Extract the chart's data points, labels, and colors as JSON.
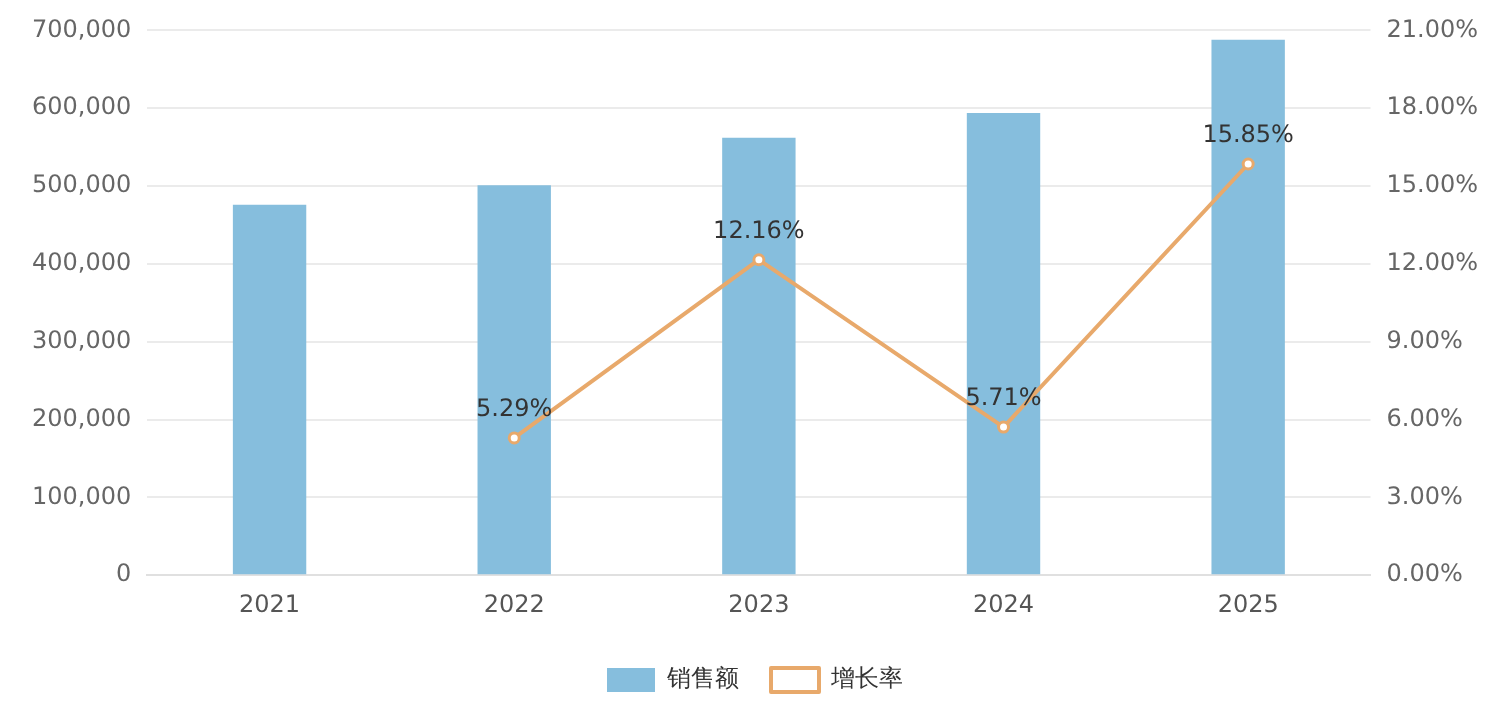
{
  "chart_data": {
    "type": "bar",
    "categories": [
      "2021",
      "2022",
      "2023",
      "2024",
      "2025"
    ],
    "series": [
      {
        "name": "销售额",
        "color": "#86bedd",
        "values": [
          476000,
          501000,
          562000,
          594000,
          688000
        ]
      },
      {
        "name": "增长率",
        "type": "line",
        "axis": "y2",
        "color": "#e8a96b",
        "values": [
          null,
          5.29,
          12.16,
          5.71,
          15.85
        ],
        "value_labels": [
          null,
          "5.29%",
          "12.16%",
          "5.71%",
          "15.85%"
        ]
      }
    ],
    "ylim": [
      0,
      700000
    ],
    "yticks": [
      {
        "value": 0,
        "label": "0"
      },
      {
        "value": 100000,
        "label": "100,000"
      },
      {
        "value": 200000,
        "label": "200,000"
      },
      {
        "value": 300000,
        "label": "300,000"
      },
      {
        "value": 400000,
        "label": "400,000"
      },
      {
        "value": 500000,
        "label": "500,000"
      },
      {
        "value": 600000,
        "label": "600,000"
      },
      {
        "value": 700000,
        "label": "700,000"
      }
    ],
    "y2lim": [
      0,
      21
    ],
    "y2ticks": [
      {
        "value": 0,
        "label": "0.00%"
      },
      {
        "value": 3,
        "label": "3.00%"
      },
      {
        "value": 6,
        "label": "6.00%"
      },
      {
        "value": 9,
        "label": "9.00%"
      },
      {
        "value": 12,
        "label": "12.00%"
      },
      {
        "value": 15,
        "label": "15.00%"
      },
      {
        "value": 18,
        "label": "18.00%"
      },
      {
        "value": 21,
        "label": "21.00%"
      }
    ],
    "grid": "y",
    "legend": "bottom",
    "marker": "circle",
    "line_style": "solid"
  }
}
